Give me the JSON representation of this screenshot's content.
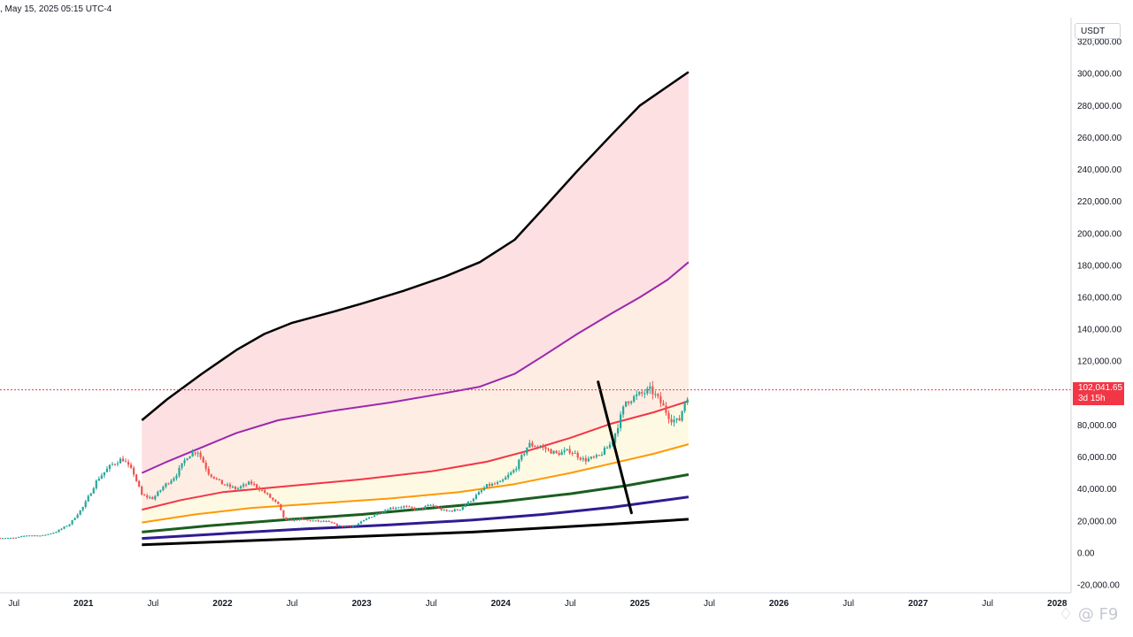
{
  "header": {
    "datetime": ", May 15, 2025 05:15 UTC-4"
  },
  "axis": {
    "currency": "USDT"
  },
  "price": {
    "value": "102,041.65",
    "countdown": "3d 15h",
    "current": 102041.65
  },
  "watermark": "♢ @ F9",
  "colors": {
    "upper_fill": "#fbd5d8",
    "mid_fill": "#fde7d9",
    "lower_fill": "#fef7d8",
    "bull": "#26a69a",
    "bear": "#ef5350",
    "band_black": "#000000",
    "band_purple": "#9c27b0",
    "band_red": "#f23645",
    "band_orange": "#ff9800",
    "band_green": "#1b5e20",
    "band_blue": "#311b92",
    "price_line": "#f23645"
  },
  "chart_data": {
    "type": "line",
    "y_ticks": [
      320000,
      300000,
      280000,
      260000,
      240000,
      220000,
      200000,
      180000,
      160000,
      140000,
      120000,
      80000,
      60000,
      40000,
      20000,
      0,
      -20000
    ],
    "y_tick_labels": [
      "320,000.00",
      "300,000.00",
      "280,000.00",
      "260,000.00",
      "240,000.00",
      "220,000.00",
      "200,000.00",
      "180,000.00",
      "160,000.00",
      "140,000.00",
      "120,000.00",
      "80,000.00",
      "60,000.00",
      "40,000.00",
      "20,000.00",
      "0.00",
      "-20,000.00"
    ],
    "ylim": [
      -25000,
      335000
    ],
    "x_ticks": [
      {
        "label": "Jul",
        "t": 2020.5,
        "year": false
      },
      {
        "label": "2021",
        "t": 2021.0,
        "year": true
      },
      {
        "label": "Jul",
        "t": 2021.5,
        "year": false
      },
      {
        "label": "2022",
        "t": 2022.0,
        "year": true
      },
      {
        "label": "Jul",
        "t": 2022.5,
        "year": false
      },
      {
        "label": "2023",
        "t": 2023.0,
        "year": true
      },
      {
        "label": "Jul",
        "t": 2023.5,
        "year": false
      },
      {
        "label": "2024",
        "t": 2024.0,
        "year": true
      },
      {
        "label": "Jul",
        "t": 2024.5,
        "year": false
      },
      {
        "label": "2025",
        "t": 2025.0,
        "year": true
      },
      {
        "label": "Jul",
        "t": 2025.5,
        "year": false
      },
      {
        "label": "2026",
        "t": 2026.0,
        "year": true
      },
      {
        "label": "Jul",
        "t": 2026.5,
        "year": false
      },
      {
        "label": "2027",
        "t": 2027.0,
        "year": true
      },
      {
        "label": "Jul",
        "t": 2027.5,
        "year": false
      },
      {
        "label": "2028",
        "t": 2028.0,
        "year": true
      }
    ],
    "xlim": [
      2020.4,
      2028.1
    ],
    "bands": [
      {
        "id": "top",
        "color": "#000000",
        "width": 2.5,
        "points": [
          [
            2021.42,
            83000
          ],
          [
            2021.6,
            96000
          ],
          [
            2021.85,
            112000
          ],
          [
            2022.1,
            127000
          ],
          [
            2022.3,
            137000
          ],
          [
            2022.5,
            144000
          ],
          [
            2022.8,
            151000
          ],
          [
            2023.0,
            156000
          ],
          [
            2023.3,
            164000
          ],
          [
            2023.6,
            173000
          ],
          [
            2023.85,
            182000
          ],
          [
            2024.1,
            196000
          ],
          [
            2024.3,
            215000
          ],
          [
            2024.55,
            239000
          ],
          [
            2024.8,
            262000
          ],
          [
            2025.0,
            280000
          ],
          [
            2025.2,
            292000
          ],
          [
            2025.35,
            301000
          ]
        ]
      },
      {
        "id": "purple",
        "color": "#9c27b0",
        "width": 2,
        "points": [
          [
            2021.42,
            50000
          ],
          [
            2021.6,
            57000
          ],
          [
            2021.85,
            66000
          ],
          [
            2022.1,
            75000
          ],
          [
            2022.4,
            83000
          ],
          [
            2022.8,
            89000
          ],
          [
            2023.2,
            94000
          ],
          [
            2023.6,
            100000
          ],
          [
            2023.85,
            104000
          ],
          [
            2024.1,
            112000
          ],
          [
            2024.3,
            123000
          ],
          [
            2024.55,
            137000
          ],
          [
            2024.8,
            150000
          ],
          [
            2025.0,
            160000
          ],
          [
            2025.2,
            171000
          ],
          [
            2025.35,
            182000
          ]
        ]
      },
      {
        "id": "red",
        "color": "#f23645",
        "width": 2,
        "points": [
          [
            2021.42,
            27000
          ],
          [
            2021.7,
            33000
          ],
          [
            2022.0,
            38000
          ],
          [
            2022.5,
            42000
          ],
          [
            2023.0,
            46000
          ],
          [
            2023.5,
            51000
          ],
          [
            2023.9,
            57000
          ],
          [
            2024.2,
            64000
          ],
          [
            2024.5,
            72000
          ],
          [
            2024.8,
            81000
          ],
          [
            2025.1,
            88000
          ],
          [
            2025.35,
            95000
          ]
        ]
      },
      {
        "id": "orange",
        "color": "#ff9800",
        "width": 2,
        "points": [
          [
            2021.42,
            19000
          ],
          [
            2021.8,
            24000
          ],
          [
            2022.2,
            28000
          ],
          [
            2022.7,
            31000
          ],
          [
            2023.2,
            34000
          ],
          [
            2023.7,
            38000
          ],
          [
            2024.1,
            43000
          ],
          [
            2024.5,
            50000
          ],
          [
            2024.8,
            56000
          ],
          [
            2025.1,
            62000
          ],
          [
            2025.35,
            68000
          ]
        ]
      },
      {
        "id": "green",
        "color": "#1b5e20",
        "width": 3,
        "points": [
          [
            2021.42,
            13000
          ],
          [
            2021.9,
            17000
          ],
          [
            2022.5,
            21000
          ],
          [
            2023.0,
            24000
          ],
          [
            2023.5,
            28000
          ],
          [
            2024.0,
            32000
          ],
          [
            2024.5,
            37000
          ],
          [
            2024.9,
            42000
          ],
          [
            2025.35,
            49000
          ]
        ]
      },
      {
        "id": "blue",
        "color": "#311b92",
        "width": 3,
        "points": [
          [
            2021.42,
            9000
          ],
          [
            2022.0,
            12000
          ],
          [
            2022.6,
            15000
          ],
          [
            2023.2,
            17500
          ],
          [
            2023.8,
            20500
          ],
          [
            2024.3,
            24000
          ],
          [
            2024.8,
            28500
          ],
          [
            2025.35,
            35000
          ]
        ]
      },
      {
        "id": "bottom",
        "color": "#000000",
        "width": 3,
        "points": [
          [
            2021.42,
            5000
          ],
          [
            2022.0,
            7000
          ],
          [
            2022.6,
            9000
          ],
          [
            2023.2,
            11000
          ],
          [
            2023.8,
            13000
          ],
          [
            2024.3,
            15500
          ],
          [
            2024.8,
            18000
          ],
          [
            2025.35,
            21000
          ]
        ]
      }
    ],
    "price_path": [
      [
        2020.4,
        9300
      ],
      [
        2020.5,
        9200
      ],
      [
        2020.6,
        11000
      ],
      [
        2020.7,
        10700
      ],
      [
        2020.8,
        13000
      ],
      [
        2020.9,
        18000
      ],
      [
        2021.0,
        29000
      ],
      [
        2021.1,
        46000
      ],
      [
        2021.2,
        55000
      ],
      [
        2021.28,
        59000
      ],
      [
        2021.36,
        50000
      ],
      [
        2021.42,
        36000
      ],
      [
        2021.5,
        34000
      ],
      [
        2021.58,
        42000
      ],
      [
        2021.66,
        48000
      ],
      [
        2021.75,
        61000
      ],
      [
        2021.82,
        64000
      ],
      [
        2021.9,
        50000
      ],
      [
        2022.0,
        43000
      ],
      [
        2022.1,
        40000
      ],
      [
        2022.2,
        44000
      ],
      [
        2022.3,
        38000
      ],
      [
        2022.4,
        30000
      ],
      [
        2022.45,
        20000
      ],
      [
        2022.55,
        21000
      ],
      [
        2022.65,
        20000
      ],
      [
        2022.75,
        19500
      ],
      [
        2022.85,
        16500
      ],
      [
        2022.95,
        16800
      ],
      [
        2023.05,
        22000
      ],
      [
        2023.2,
        28000
      ],
      [
        2023.3,
        29000
      ],
      [
        2023.4,
        27000
      ],
      [
        2023.5,
        30000
      ],
      [
        2023.6,
        26000
      ],
      [
        2023.7,
        27000
      ],
      [
        2023.8,
        34000
      ],
      [
        2023.9,
        42000
      ],
      [
        2024.0,
        44000
      ],
      [
        2024.1,
        52000
      ],
      [
        2024.2,
        68000
      ],
      [
        2024.3,
        66000
      ],
      [
        2024.4,
        62000
      ],
      [
        2024.5,
        64000
      ],
      [
        2024.6,
        58000
      ],
      [
        2024.7,
        60000
      ],
      [
        2024.8,
        69000
      ],
      [
        2024.9,
        95000
      ],
      [
        2025.0,
        99000
      ],
      [
        2025.08,
        102000
      ],
      [
        2025.15,
        94000
      ],
      [
        2025.22,
        84000
      ],
      [
        2025.28,
        82000
      ],
      [
        2025.32,
        94000
      ],
      [
        2025.36,
        102041
      ]
    ],
    "trendline": [
      [
        2024.7,
        107000
      ],
      [
        2024.94,
        25000
      ]
    ]
  }
}
